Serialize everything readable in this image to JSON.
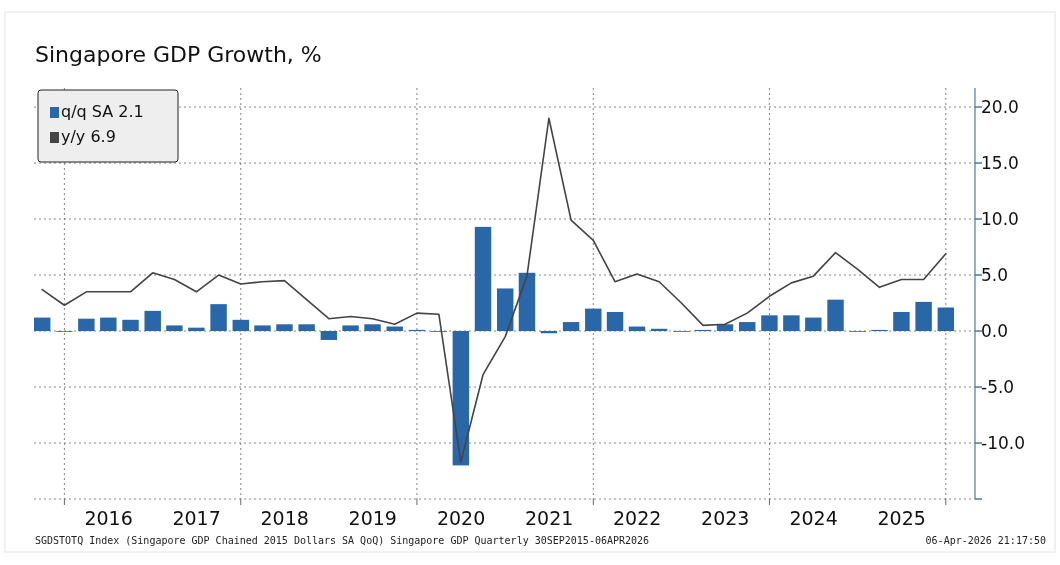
{
  "chart_data": {
    "type": "bar",
    "title": "Singapore GDP Growth, %",
    "x": [
      "2015-09-30",
      "2015-12-31",
      "2016-03-31",
      "2016-06-30",
      "2016-09-30",
      "2016-12-31",
      "2017-03-31",
      "2017-06-30",
      "2017-09-30",
      "2017-12-31",
      "2018-03-31",
      "2018-06-30",
      "2018-09-30",
      "2018-12-31",
      "2019-03-31",
      "2019-06-30",
      "2019-09-30",
      "2019-12-31",
      "2020-03-31",
      "2020-06-30",
      "2020-09-30",
      "2020-12-31",
      "2021-03-31",
      "2021-06-30",
      "2021-09-30",
      "2021-12-31",
      "2022-03-31",
      "2022-06-30",
      "2022-09-30",
      "2022-12-31",
      "2023-03-31",
      "2023-06-30",
      "2023-09-30",
      "2023-12-31",
      "2024-03-31",
      "2024-06-30",
      "2024-09-30",
      "2024-12-31",
      "2025-03-31",
      "2025-06-30",
      "2025-09-30",
      "2025-12-31"
    ],
    "series": [
      {
        "name": "q/q SA 2.1",
        "color": "#2a67a8",
        "values": [
          1.2,
          0.0,
          1.1,
          1.2,
          1.0,
          1.8,
          0.5,
          0.3,
          2.4,
          1.0,
          0.5,
          0.6,
          0.6,
          -0.8,
          0.5,
          0.6,
          0.4,
          0.1,
          0.0,
          -12.0,
          9.3,
          3.8,
          5.2,
          -0.2,
          0.8,
          2.0,
          1.7,
          0.4,
          0.2,
          0.0,
          0.1,
          0.6,
          0.8,
          1.4,
          1.4,
          1.2,
          2.8,
          0.0,
          0.1,
          1.7,
          2.6,
          2.1
        ]
      },
      {
        "name": "y/y 6.9",
        "type": "line",
        "color": "#444444",
        "values": [
          3.7,
          2.3,
          3.5,
          3.5,
          3.5,
          5.2,
          4.6,
          3.5,
          5.0,
          4.2,
          4.4,
          4.5,
          2.8,
          1.1,
          1.3,
          1.1,
          0.6,
          1.6,
          1.5,
          -11.7,
          -3.9,
          -0.5,
          4.9,
          19.0,
          9.9,
          8.1,
          4.4,
          5.1,
          4.4,
          2.5,
          0.5,
          0.6,
          1.6,
          3.1,
          4.3,
          4.9,
          7.0,
          5.5,
          3.9,
          4.6,
          4.6,
          6.9
        ]
      }
    ],
    "xlim": [
      "2015-08-27",
      "2026-05-01"
    ],
    "xticks": [
      {
        "value": "2015-12-31",
        "label": null
      },
      {
        "value": "2016-07-01",
        "label": "2016"
      },
      {
        "value": "2017-07-01",
        "label": "2017"
      },
      {
        "value": "2017-12-31",
        "label": null
      },
      {
        "value": "2018-07-01",
        "label": "2018"
      },
      {
        "value": "2019-07-01",
        "label": "2019"
      },
      {
        "value": "2019-12-31",
        "label": null
      },
      {
        "value": "2020-07-01",
        "label": "2020"
      },
      {
        "value": "2021-07-01",
        "label": "2021"
      },
      {
        "value": "2021-12-31",
        "label": null
      },
      {
        "value": "2022-07-01",
        "label": "2022"
      },
      {
        "value": "2023-07-01",
        "label": "2023"
      },
      {
        "value": "2023-12-31",
        "label": null
      },
      {
        "value": "2024-07-01",
        "label": "2024"
      },
      {
        "value": "2025-07-01",
        "label": "2025"
      },
      {
        "value": "2025-12-31",
        "label": null
      }
    ],
    "ylim": [
      -15,
      21.7
    ],
    "yticks": [
      {
        "value": -15,
        "label": null
      },
      {
        "value": -10,
        "label": "-10.0"
      },
      {
        "value": -5,
        "label": "-5.0"
      },
      {
        "value": 0,
        "label": "0.0"
      },
      {
        "value": 5,
        "label": "5.0"
      },
      {
        "value": 10,
        "label": "10.0"
      },
      {
        "value": 15,
        "label": "15.0"
      },
      {
        "value": 20,
        "label": "20.0"
      }
    ],
    "grid": true,
    "legend": "top left",
    "annotations": [
      "SGDSTOTQ Index (Singapore GDP Chained 2015 Dollars SA QoQ) Singapore GDP Quarterly 30SEP2015-06APR2026",
      "06-Apr-2026 21:17:50"
    ]
  }
}
